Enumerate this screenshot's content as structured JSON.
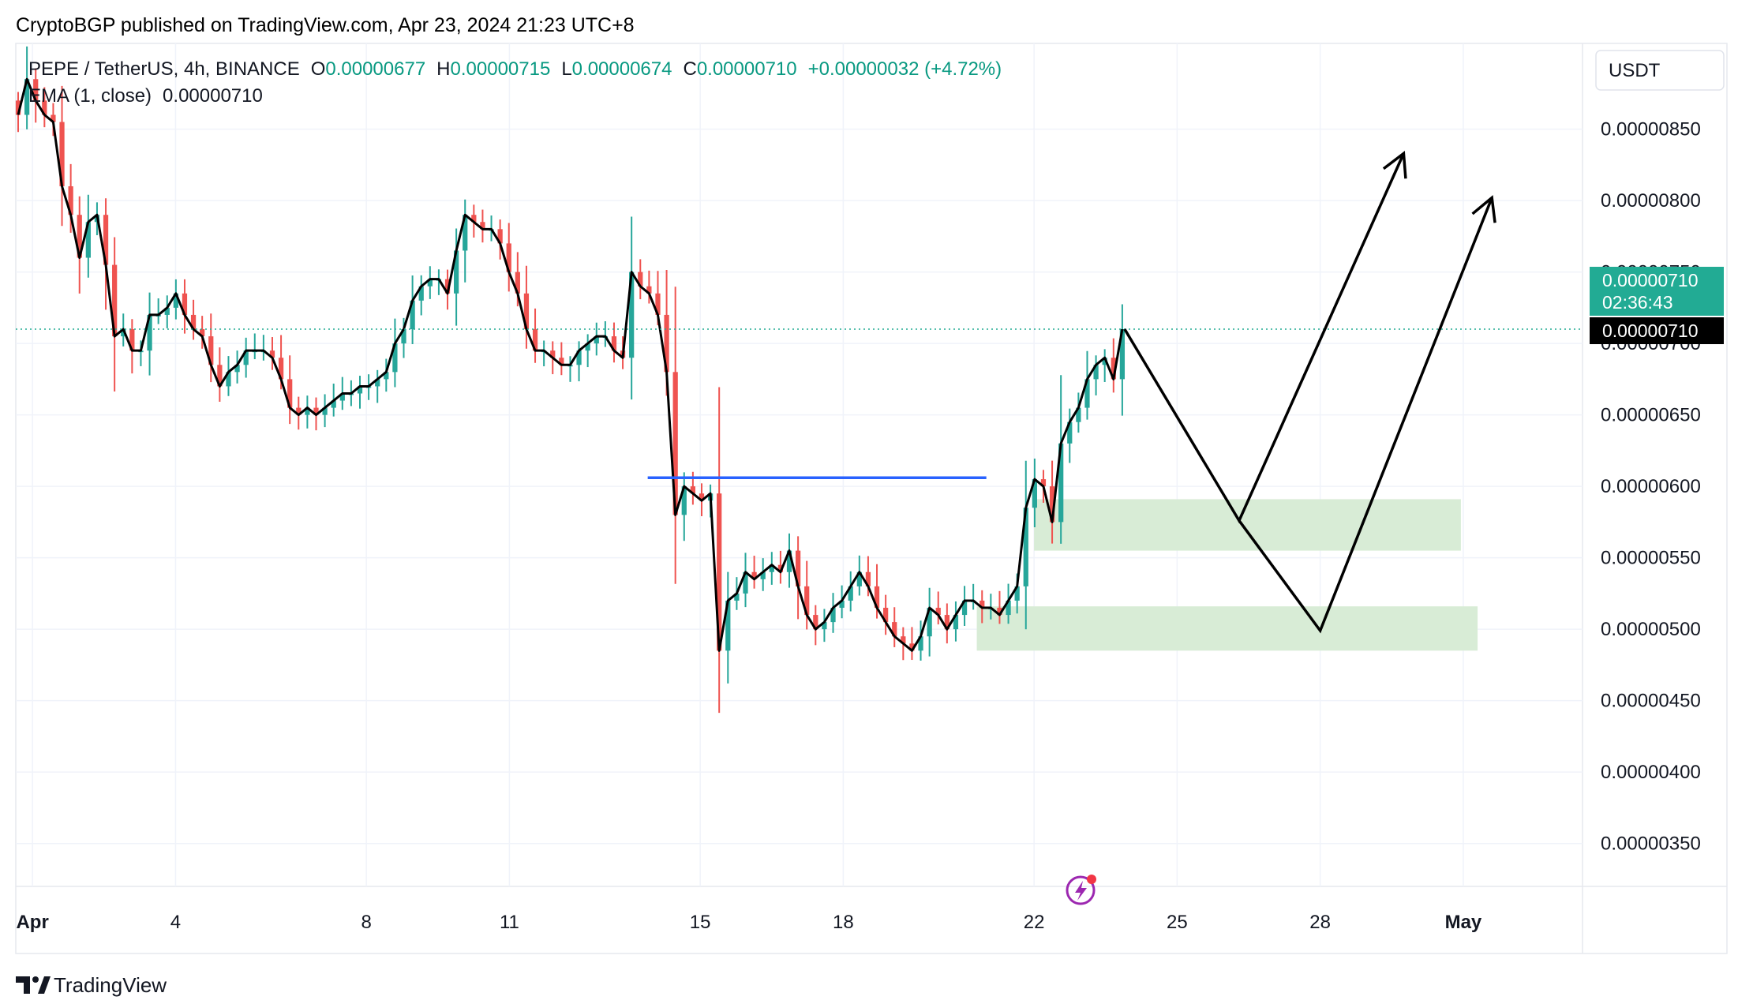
{
  "header": {
    "published_text": "CryptoBGP published on TradingView.com, Apr 23, 2024 21:23 UTC+8"
  },
  "legend": {
    "symbol": "PEPE / TetherUS, 4h, BINANCE",
    "open_label": "O",
    "open": "0.00000677",
    "high_label": "H",
    "high": "0.00000715",
    "low_label": "L",
    "low": "0.00000674",
    "close_label": "C",
    "close": "0.00000710",
    "change": "+0.00000032 (+4.72%)",
    "ema": "EMA (1, close)",
    "ema_value": "0.00000710"
  },
  "currency_button": "USDT",
  "price_tag": {
    "price": "0.00000710",
    "countdown": "02:36:43",
    "ema_price": "0.00000710"
  },
  "footer": {
    "brand": "TradingView"
  },
  "colors": {
    "up": "#26a69a",
    "down": "#ef5350",
    "grid": "#f0f3fa",
    "ema": "#000000",
    "level": "#2962ff",
    "zone": "#d8ecd6",
    "tag_green": "#22ab94",
    "tag_black": "#000000",
    "lightning": "#9c27b0"
  },
  "chart_data": {
    "type": "candlestick",
    "symbol": "PEPE / TetherUS",
    "timeframe": "4h",
    "exchange": "BINANCE",
    "y_axis": {
      "range": [
        3.2e-06,
        9.1e-06
      ],
      "ticks": [
        "0.00000350",
        "0.00000400",
        "0.00000450",
        "0.00000500",
        "0.00000550",
        "0.00000600",
        "0.00000650",
        "0.00000700",
        "0.00000750",
        "0.00000800",
        "0.00000850"
      ]
    },
    "x_axis": {
      "range_days": [
        0.65,
        33.5
      ],
      "ticks": [
        {
          "label": "Apr",
          "day": 1
        },
        {
          "label": "4",
          "day": 4
        },
        {
          "label": "8",
          "day": 8
        },
        {
          "label": "11",
          "day": 11
        },
        {
          "label": "15",
          "day": 15
        },
        {
          "label": "18",
          "day": 18
        },
        {
          "label": "22",
          "day": 22
        },
        {
          "label": "25",
          "day": 25
        },
        {
          "label": "28",
          "day": 28
        },
        {
          "label": "May",
          "day": 31
        }
      ]
    },
    "closes": [
      8.6,
      8.85,
      8.7,
      8.6,
      8.55,
      8.1,
      7.9,
      7.6,
      7.85,
      7.9,
      7.55,
      7.05,
      7.1,
      6.95,
      6.95,
      7.2,
      7.2,
      7.25,
      7.35,
      7.2,
      7.1,
      7.05,
      6.85,
      6.7,
      6.8,
      6.85,
      6.95,
      6.95,
      6.95,
      6.9,
      6.75,
      6.55,
      6.5,
      6.55,
      6.5,
      6.55,
      6.6,
      6.65,
      6.65,
      6.7,
      6.7,
      6.75,
      6.8,
      7.0,
      7.1,
      7.3,
      7.4,
      7.45,
      7.45,
      7.35,
      7.65,
      7.9,
      7.85,
      7.8,
      7.8,
      7.7,
      7.5,
      7.35,
      7.1,
      6.95,
      6.95,
      6.9,
      6.85,
      6.85,
      6.95,
      7.0,
      7.05,
      7.05,
      6.95,
      6.9,
      7.5,
      7.4,
      7.35,
      7.2,
      6.8,
      5.8,
      6.0,
      5.95,
      5.9,
      5.95,
      4.85,
      5.2,
      5.25,
      5.4,
      5.35,
      5.4,
      5.45,
      5.4,
      5.55,
      5.3,
      5.1,
      5.0,
      5.05,
      5.15,
      5.2,
      5.3,
      5.4,
      5.3,
      5.15,
      5.05,
      4.95,
      4.9,
      4.85,
      4.95,
      5.15,
      5.1,
      5.0,
      5.1,
      5.2,
      5.2,
      5.15,
      5.15,
      5.1,
      5.2,
      5.3,
      5.85,
      6.05,
      6.0,
      5.75,
      6.3,
      6.45,
      6.55,
      6.75,
      6.85,
      6.9,
      6.75,
      7.1
    ],
    "closes_unit": "1e-6 USDT",
    "ema": {
      "name": "EMA (1, close)",
      "last": 7.1e-06
    },
    "last_price": 7.1e-06,
    "annotations": {
      "resistance_line": {
        "price": 6.06e-06,
        "from_day": 13.9,
        "to_day": 21.0
      },
      "zones": [
        {
          "top": 5.91e-06,
          "bottom": 5.55e-06,
          "from_day": 22.0,
          "to_day": 30.95
        },
        {
          "top": 5.16e-06,
          "bottom": 4.85e-06,
          "from_day": 20.8,
          "to_day": 31.3
        }
      ],
      "projection_path_1": [
        [
          23.9,
          7.1e-06
        ],
        [
          26.3,
          5.76e-06
        ],
        [
          29.75,
          8.33e-06
        ]
      ],
      "projection_path_2": [
        [
          26.3,
          5.76e-06
        ],
        [
          28.0,
          4.99e-06
        ],
        [
          31.6,
          8.02e-06
        ]
      ]
    }
  }
}
